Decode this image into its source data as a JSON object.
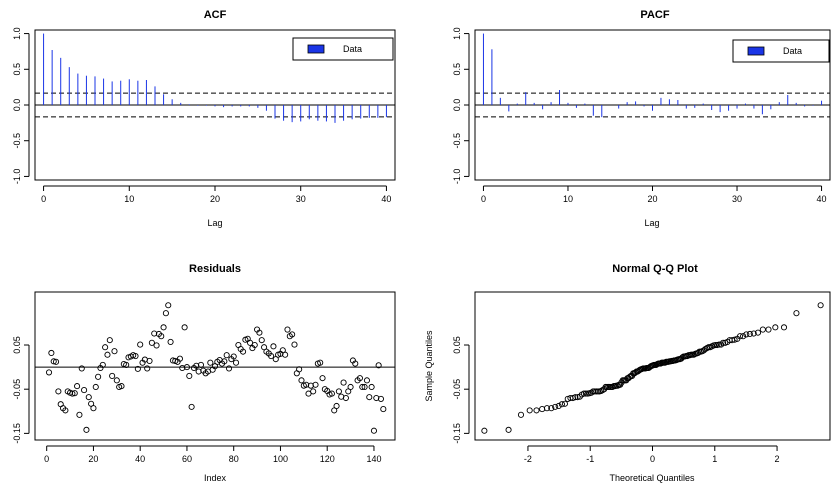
{
  "chart_data": [
    {
      "type": "bar",
      "title": "ACF",
      "xlabel": "Lag",
      "ylabel": "",
      "xlim": [
        -1,
        41
      ],
      "ylim": [
        -1.05,
        1.05
      ],
      "xticks": [
        0,
        10,
        20,
        30,
        40
      ],
      "yticks": [
        1.0,
        0.5,
        0.0,
        -0.5,
        -1.0
      ],
      "ytick_labels": [
        "1.0",
        "0.5",
        "0.0",
        "-0.5",
        "-1.0"
      ],
      "legend": {
        "label": "Data",
        "position": "top-right",
        "color": "#1a35e6"
      },
      "conf_band": 0.166,
      "x": [
        0,
        1,
        2,
        3,
        4,
        5,
        6,
        7,
        8,
        9,
        10,
        11,
        12,
        13,
        14,
        15,
        16,
        17,
        18,
        19,
        20,
        21,
        22,
        23,
        24,
        25,
        26,
        27,
        28,
        29,
        30,
        31,
        32,
        33,
        34,
        35,
        36,
        37,
        38,
        39,
        40
      ],
      "values": [
        1.0,
        0.77,
        0.66,
        0.53,
        0.44,
        0.41,
        0.4,
        0.37,
        0.33,
        0.34,
        0.36,
        0.34,
        0.35,
        0.26,
        0.15,
        0.08,
        0.03,
        0.01,
        -0.01,
        -0.01,
        -0.02,
        -0.03,
        -0.02,
        -0.02,
        -0.02,
        -0.04,
        -0.08,
        -0.19,
        -0.22,
        -0.24,
        -0.23,
        -0.2,
        -0.22,
        -0.23,
        -0.25,
        -0.22,
        -0.2,
        -0.19,
        -0.18,
        -0.18,
        -0.17
      ]
    },
    {
      "type": "bar",
      "title": "PACF",
      "xlabel": "Lag",
      "ylabel": "",
      "xlim": [
        -1,
        41
      ],
      "ylim": [
        -1.05,
        1.05
      ],
      "xticks": [
        0,
        10,
        20,
        30,
        40
      ],
      "yticks": [
        1.0,
        0.5,
        0.0,
        -0.5,
        -1.0
      ],
      "ytick_labels": [
        "1.0",
        "0.5",
        "0.0",
        "-0.5",
        "-1.0"
      ],
      "legend": {
        "label": "Data",
        "position": "top-right",
        "color": "#1a35e6"
      },
      "conf_band": 0.166,
      "x": [
        0,
        1,
        2,
        3,
        4,
        5,
        6,
        7,
        8,
        9,
        10,
        11,
        12,
        13,
        14,
        15,
        16,
        17,
        18,
        19,
        20,
        21,
        22,
        23,
        24,
        25,
        26,
        27,
        28,
        29,
        30,
        31,
        32,
        33,
        34,
        35,
        36,
        37,
        38,
        39,
        40
      ],
      "values": [
        1.0,
        0.78,
        0.1,
        -0.09,
        0.02,
        0.18,
        0.03,
        -0.06,
        0.04,
        0.21,
        0.03,
        -0.04,
        0.02,
        -0.15,
        -0.17,
        0.0,
        -0.05,
        0.04,
        0.05,
        -0.02,
        -0.08,
        0.1,
        0.08,
        0.07,
        -0.05,
        -0.04,
        0.02,
        -0.07,
        -0.1,
        -0.08,
        -0.05,
        0.02,
        -0.05,
        -0.13,
        -0.06,
        0.04,
        0.14,
        0.03,
        -0.02,
        -0.01,
        0.06
      ]
    },
    {
      "type": "scatter",
      "title": "Residuals",
      "xlabel": "Index",
      "ylabel": "",
      "xlim": [
        -5,
        149
      ],
      "ylim": [
        -0.165,
        0.17
      ],
      "xticks": [
        0,
        20,
        40,
        60,
        80,
        100,
        120,
        140
      ],
      "yticks": [
        0.05,
        -0.05,
        -0.15
      ],
      "ytick_labels": [
        "0.05",
        "-0.05",
        "-0.15"
      ],
      "hline": 0,
      "x": [
        1,
        2,
        3,
        4,
        5,
        6,
        7,
        8,
        9,
        10,
        11,
        12,
        13,
        14,
        15,
        16,
        17,
        18,
        19,
        20,
        21,
        22,
        23,
        24,
        25,
        26,
        27,
        28,
        29,
        30,
        31,
        32,
        33,
        34,
        35,
        36,
        37,
        38,
        39,
        40,
        41,
        42,
        43,
        44,
        45,
        46,
        47,
        48,
        49,
        50,
        51,
        52,
        53,
        54,
        55,
        56,
        57,
        58,
        59,
        60,
        61,
        62,
        63,
        64,
        65,
        66,
        67,
        68,
        69,
        70,
        71,
        72,
        73,
        74,
        75,
        76,
        77,
        78,
        79,
        80,
        81,
        82,
        83,
        84,
        85,
        86,
        87,
        88,
        89,
        90,
        91,
        92,
        93,
        94,
        95,
        96,
        97,
        98,
        99,
        100,
        101,
        102,
        103,
        104,
        105,
        106,
        107,
        108,
        109,
        110,
        111,
        112,
        113,
        114,
        115,
        116,
        117,
        118,
        119,
        120,
        121,
        122,
        123,
        124,
        125,
        126,
        127,
        128,
        129,
        130,
        131,
        132,
        133,
        134,
        135,
        136,
        137,
        138,
        139,
        140,
        141,
        142,
        143,
        144
      ],
      "values": [
        -0.012,
        0.032,
        0.013,
        0.012,
        -0.055,
        -0.084,
        -0.093,
        -0.098,
        -0.055,
        -0.058,
        -0.06,
        -0.059,
        -0.043,
        -0.108,
        -0.003,
        -0.052,
        -0.142,
        -0.068,
        -0.083,
        -0.093,
        -0.045,
        -0.022,
        -0.002,
        0.005,
        0.045,
        0.028,
        0.061,
        -0.02,
        0.036,
        -0.03,
        -0.045,
        -0.043,
        0.007,
        0.005,
        0.022,
        0.024,
        0.027,
        0.025,
        -0.004,
        0.051,
        0.01,
        0.017,
        -0.003,
        0.014,
        0.055,
        0.076,
        0.049,
        0.075,
        0.07,
        0.09,
        0.122,
        0.14,
        0.057,
        0.015,
        0.014,
        0.012,
        0.019,
        -0.002,
        0.09,
        0.0,
        -0.02,
        -0.09,
        -0.002,
        0.003,
        -0.01,
        0.005,
        -0.008,
        -0.014,
        -0.01,
        0.01,
        -0.006,
        0.002,
        0.012,
        0.016,
        0.008,
        0.013,
        0.027,
        -0.003,
        0.018,
        0.024,
        0.01,
        0.05,
        0.041,
        0.035,
        0.062,
        0.064,
        0.055,
        0.043,
        0.05,
        0.085,
        0.078,
        0.061,
        0.045,
        0.035,
        0.031,
        0.025,
        0.047,
        0.018,
        0.028,
        0.03,
        0.038,
        0.028,
        0.085,
        0.07,
        0.074,
        0.051,
        -0.014,
        -0.005,
        -0.03,
        -0.042,
        -0.04,
        -0.06,
        -0.042,
        -0.055,
        -0.04,
        0.008,
        0.01,
        -0.025,
        -0.05,
        -0.054,
        -0.062,
        -0.06,
        -0.098,
        -0.088,
        -0.055,
        -0.067,
        -0.035,
        -0.07,
        -0.055,
        -0.045,
        0.015,
        0.008,
        -0.03,
        -0.025,
        -0.045,
        -0.045,
        -0.03,
        -0.068,
        -0.045,
        -0.144,
        -0.07,
        0.004,
        -0.072,
        -0.095
      ],
      "x_shift": 1
    },
    {
      "type": "scatter",
      "title": "Normal Q-Q Plot",
      "xlabel": "Theoretical Quantiles",
      "ylabel": "Sample Quantiles",
      "xlim": [
        -2.85,
        2.85
      ],
      "ylim": [
        -0.165,
        0.17
      ],
      "xticks": [
        -2,
        -1,
        0,
        1,
        2
      ],
      "yticks": [
        0.05,
        -0.05,
        -0.15
      ],
      "ytick_labels": [
        "0.05",
        "-0.05",
        "-0.15"
      ]
    }
  ]
}
